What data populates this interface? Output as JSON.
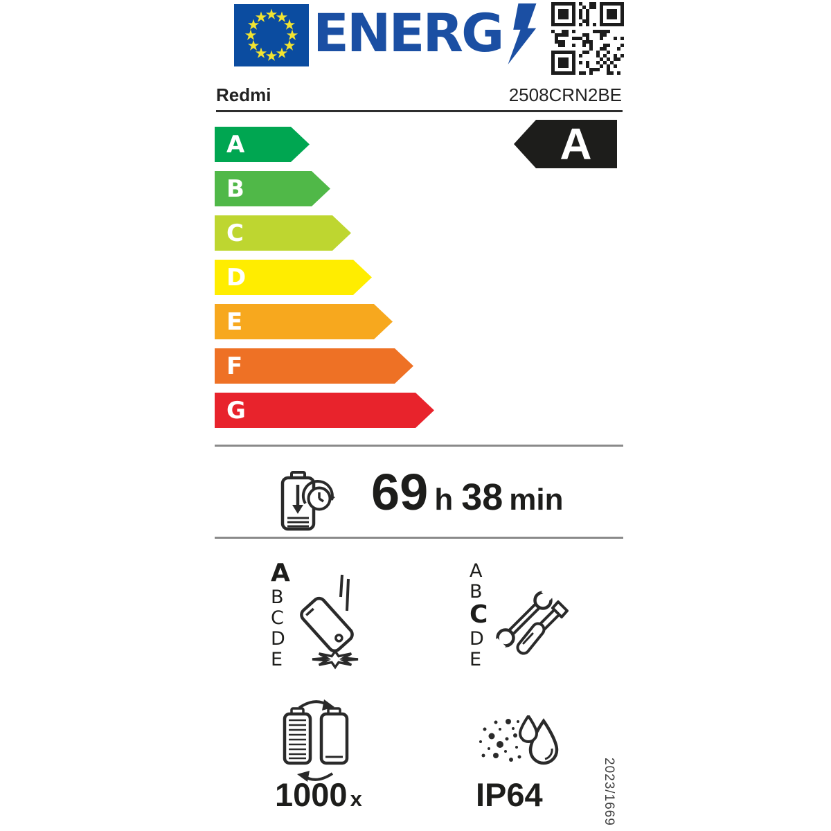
{
  "header": {
    "energ_word": "ENERG",
    "icons": {
      "eu_flag": "eu-flag-icon",
      "lightning": "lightning-bolt-icon",
      "qr": "qr-code"
    }
  },
  "brand": {
    "name": "Redmi",
    "model": "2508CRN2BE"
  },
  "scale": {
    "classes": [
      {
        "label": "A",
        "color": "#00a651"
      },
      {
        "label": "B",
        "color": "#50b848"
      },
      {
        "label": "C",
        "color": "#bed630"
      },
      {
        "label": "D",
        "color": "#ffed00"
      },
      {
        "label": "E",
        "color": "#f7a81e"
      },
      {
        "label": "F",
        "color": "#ee7125"
      },
      {
        "label": "G",
        "color": "#e8232c"
      }
    ],
    "rated_class": "A",
    "rated_arrow_color": "#1d1d1b"
  },
  "battery_endurance": {
    "hours": "69",
    "hours_unit": "h",
    "minutes": "38",
    "minutes_unit": "min"
  },
  "drop_reliability": {
    "scale": [
      "A",
      "B",
      "C",
      "D",
      "E"
    ],
    "selected": "A"
  },
  "repairability": {
    "scale": [
      "A",
      "B",
      "C",
      "D",
      "E"
    ],
    "selected": "C"
  },
  "battery_cycles": {
    "value": "1000",
    "unit": "x"
  },
  "ingress_protection": {
    "rating": "IP64"
  },
  "regulation_number": "2023/1669"
}
